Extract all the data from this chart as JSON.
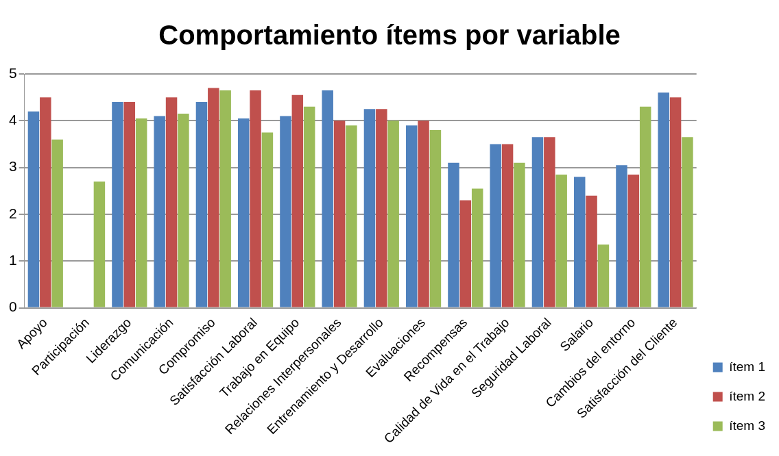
{
  "chart_data": {
    "type": "bar",
    "title": "Comportamiento ítems por variable",
    "categories": [
      "Apoyo",
      "Participación",
      "Liderazgo",
      "Comunicación",
      "Compromiso",
      "Satisfacción Laboral",
      "Trabajo en Equipo",
      "Relaciones Interpersonales",
      "Entrenamiento y Desarrollo",
      "Evaluaciones",
      "Recompensas",
      "Calidad de Vida en el Trabajo",
      "Seguridad Laboral",
      "Salario",
      "Cambios del entorno",
      "Satisfacción del Cliente"
    ],
    "series": [
      {
        "name": "ítem 1",
        "color": "#4f81bd",
        "values": [
          4.2,
          null,
          4.4,
          4.1,
          4.4,
          4.05,
          4.1,
          4.65,
          4.25,
          3.9,
          3.1,
          3.5,
          3.65,
          2.8,
          3.05,
          4.6
        ]
      },
      {
        "name": "ítem 2",
        "color": "#c0504d",
        "values": [
          4.5,
          null,
          4.4,
          4.5,
          4.7,
          4.65,
          4.55,
          4.0,
          4.25,
          4.0,
          2.3,
          3.5,
          3.65,
          2.4,
          2.85,
          4.5
        ]
      },
      {
        "name": "ítem 3",
        "color": "#9bbb59",
        "values": [
          3.6,
          2.7,
          4.05,
          4.15,
          4.65,
          3.75,
          4.3,
          3.9,
          4.0,
          3.8,
          2.55,
          3.1,
          2.85,
          1.35,
          4.3,
          3.65
        ]
      }
    ],
    "ylim": [
      0,
      5
    ],
    "yticks": [
      0,
      1,
      2,
      3,
      4,
      5
    ],
    "grid": "y",
    "legend": "bottom right"
  }
}
